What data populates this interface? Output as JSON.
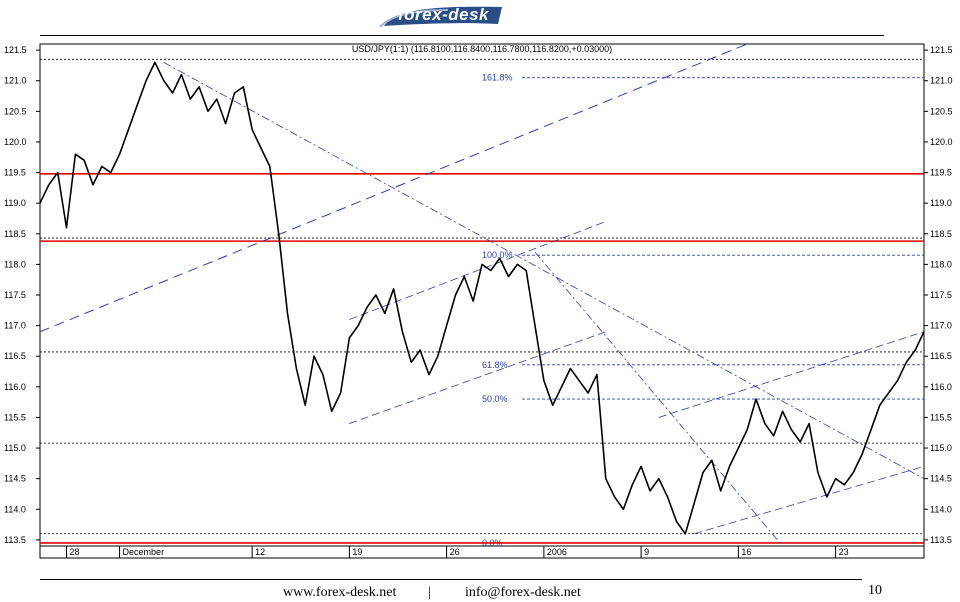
{
  "logo": {
    "text": "forex-desk"
  },
  "footer": {
    "website": "www.forex-desk.net",
    "separator": "|",
    "email": "info@forex-desk.net",
    "page_number": "10"
  },
  "chart_data": {
    "type": "line",
    "title": "USD/JPY(1:1) (116.8100,116.8400,116.7800,116.8200,+0.03000)",
    "ylim": [
      113.4,
      121.6
    ],
    "yticks": [
      113.5,
      114.0,
      114.5,
      115.0,
      115.5,
      116.0,
      116.5,
      117.0,
      117.5,
      118.0,
      118.5,
      119.0,
      119.5,
      120.0,
      120.5,
      121.0,
      121.5
    ],
    "ytick_labels": [
      "113.5",
      "114.0",
      "114.5",
      "115.0",
      "115.5",
      "116.0",
      "116.5",
      "117.0",
      "117.5",
      "118.0",
      "118.5",
      "119.0",
      "119.5",
      "120.0",
      "120.5",
      "121.0",
      "121.5"
    ],
    "xlim": [
      0,
      100
    ],
    "xtick_labels": [
      {
        "label": "28",
        "x": 3
      },
      {
        "label": "December",
        "x": 9
      },
      {
        "label": "12",
        "x": 24
      },
      {
        "label": "19",
        "x": 35
      },
      {
        "label": "26",
        "x": 46
      },
      {
        "label": "2006",
        "x": 57
      },
      {
        "label": "9",
        "x": 68
      },
      {
        "label": "16",
        "x": 79
      },
      {
        "label": "23",
        "x": 90
      }
    ],
    "fibonacci": [
      {
        "label": "161.8%",
        "value": 121.05
      },
      {
        "label": "100.0%",
        "value": 118.15
      },
      {
        "label": "61.8%",
        "value": 116.36
      },
      {
        "label": "50.0%",
        "value": 115.8
      },
      {
        "label": "0.0%",
        "value": 113.45
      }
    ],
    "horizontal_levels": [
      119.48,
      118.38,
      113.45
    ],
    "dotted_levels": [
      121.35,
      118.43,
      116.57,
      115.08,
      113.6
    ],
    "series": [
      {
        "x": [
          0,
          1,
          2,
          3,
          4,
          5,
          6,
          7,
          8,
          9,
          10,
          11,
          12,
          13,
          14,
          15,
          16,
          17,
          18,
          19,
          20,
          21,
          22,
          23,
          24,
          25,
          26,
          27,
          28,
          29,
          30,
          31,
          32,
          33,
          34,
          35,
          36,
          37,
          38,
          39,
          40,
          41,
          42,
          43,
          44,
          45,
          46,
          47,
          48,
          49,
          50,
          51,
          52,
          53,
          54,
          55,
          56,
          57,
          58,
          59,
          60,
          61,
          62,
          63,
          64,
          65,
          66,
          67,
          68,
          69,
          70,
          71,
          72,
          73,
          74,
          75,
          76,
          77,
          78,
          79,
          80,
          81,
          82,
          83,
          84,
          85,
          86,
          87,
          88,
          89,
          90,
          91,
          92,
          93,
          94,
          95,
          96,
          97,
          98,
          99,
          100
        ],
        "values": [
          119.0,
          119.3,
          119.5,
          118.6,
          119.8,
          119.7,
          119.3,
          119.6,
          119.5,
          119.8,
          120.2,
          120.6,
          121.0,
          121.3,
          121.0,
          120.8,
          121.1,
          120.7,
          120.9,
          120.5,
          120.7,
          120.3,
          120.8,
          120.9,
          120.2,
          119.9,
          119.6,
          118.5,
          117.2,
          116.3,
          115.7,
          116.5,
          116.2,
          115.6,
          115.9,
          116.8,
          117.0,
          117.3,
          117.5,
          117.2,
          117.6,
          116.9,
          116.4,
          116.6,
          116.2,
          116.5,
          117.0,
          117.5,
          117.8,
          117.4,
          118.0,
          117.9,
          118.1,
          117.8,
          118.0,
          117.9,
          117.0,
          116.1,
          115.7,
          116.0,
          116.3,
          116.1,
          115.9,
          116.2,
          114.5,
          114.2,
          114.0,
          114.4,
          114.7,
          114.3,
          114.5,
          114.2,
          113.8,
          113.6,
          114.1,
          114.6,
          114.8,
          114.3,
          114.7,
          115.0,
          115.3,
          115.8,
          115.4,
          115.2,
          115.6,
          115.3,
          115.1,
          115.4,
          114.6,
          114.2,
          114.5,
          114.4,
          114.6,
          114.9,
          115.3,
          115.7,
          115.9,
          116.1,
          116.4,
          116.6,
          116.9
        ]
      }
    ],
    "grid": false,
    "legend": "none"
  }
}
